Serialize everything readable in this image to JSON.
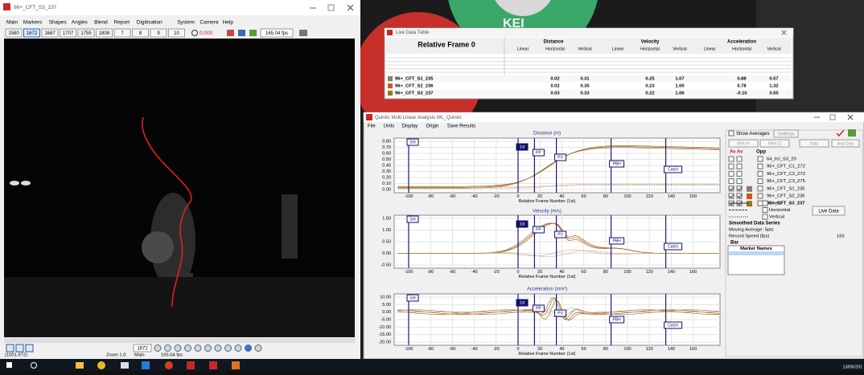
{
  "background_text": "KEI",
  "video_window": {
    "title": "96+_CFT_S3_237",
    "menu": [
      "Main",
      "Markers",
      "Shapes",
      "Angles",
      "Blend",
      "Report",
      "Digitisation",
      "System",
      "Camera",
      "Help"
    ],
    "toolbar": [
      "1580",
      "1672",
      "1687",
      "1707",
      "1755",
      "1808",
      "7",
      "8",
      "9",
      "10"
    ],
    "timer": "0.000",
    "fps_field": "165.04 fps",
    "frame_field": "1672",
    "status": [
      "(1001,972)",
      "Zoom 1.0",
      "Main",
      "165.04 fps"
    ]
  },
  "live_table": {
    "title": "Live Data Table",
    "header": "Relative Frame 0",
    "groups": [
      "Distance",
      "Velocity",
      "Acceleration"
    ],
    "columns": [
      "Linear",
      "Horizontal",
      "Vertical"
    ],
    "rows": [
      {
        "name": "96+_CFT_S1_235",
        "color": "#8c7b6e",
        "values": [
          "0.02",
          "0.31",
          "0.25",
          "1.07",
          "0.88",
          "0.57"
        ]
      },
      {
        "name": "96+_CFT_S2_236",
        "color": "#d4561d",
        "values": [
          "0.02",
          "0.30",
          "0.23",
          "1.00",
          "0.78",
          "1.32"
        ]
      },
      {
        "name": "96+_CFT_S3_237",
        "color": "#8c7a1c",
        "values": [
          "0.03",
          "0.33",
          "0.22",
          "1.06",
          "-0.10",
          "0.55"
        ]
      }
    ]
  },
  "analysis_window": {
    "title": "Quintic Multi Linear Analysis WL_Quintic",
    "menu": [
      "File",
      "Units",
      "Display",
      "Origin",
      "Save Results"
    ],
    "plots": [
      {
        "title": "Distance (m)",
        "yticks": [
          "0.80",
          "0.70",
          "0.60",
          "0.50",
          "0.40",
          "0.30",
          "0.20",
          "0.10",
          "0.00"
        ]
      },
      {
        "title": "Velocity (m/s)",
        "yticks": [
          "1.50",
          "1.00",
          "0.50",
          "0.00",
          "-0.50"
        ]
      },
      {
        "title": "Acceleration (m/s²)",
        "yticks": [
          "10.00",
          "5.00",
          "0.00",
          "-5.00",
          "-10.00",
          "-15.00",
          "-20.00"
        ]
      }
    ],
    "xticks": [
      "-100",
      "-80",
      "-60",
      "-40",
      "-20",
      "0",
      "20",
      "40",
      "60",
      "80",
      "100",
      "120",
      "140",
      "160"
    ],
    "xlabel": "Relative Frame Number (1st)",
    "markers": [
      "Set",
      "1st",
      "PP",
      "PV",
      "PBH",
      "Catch"
    ],
    "side": {
      "show_averages": "Show Averages",
      "settings": "Settings",
      "buttons": [
        "95% PI",
        "95% CI",
        "Data",
        "Avg Only"
      ],
      "list_header": [
        "Av",
        "Av",
        "Opp"
      ],
      "list": [
        "64_HJ_S3_20",
        "96+_CFT_C1_272",
        "96+_CFT_C2_273",
        "96+_CFT_C3_275",
        "96+_CFT_S1_235",
        "96+_CFT_S2_236",
        "96+_CFT_S3_237"
      ],
      "line_legend": [
        "Linear",
        "Horizontal",
        "Vertical"
      ],
      "live_data": "Live Data",
      "smoothed": "Smoothed Data Series",
      "moving_average": "Moving Average: 5pts",
      "record_speed": "Record Speed (fps)",
      "record_speed_value": "165",
      "bar": "Bar",
      "marker_names": "Marker Names"
    }
  },
  "taskbar": {
    "date": "13/06/201"
  }
}
